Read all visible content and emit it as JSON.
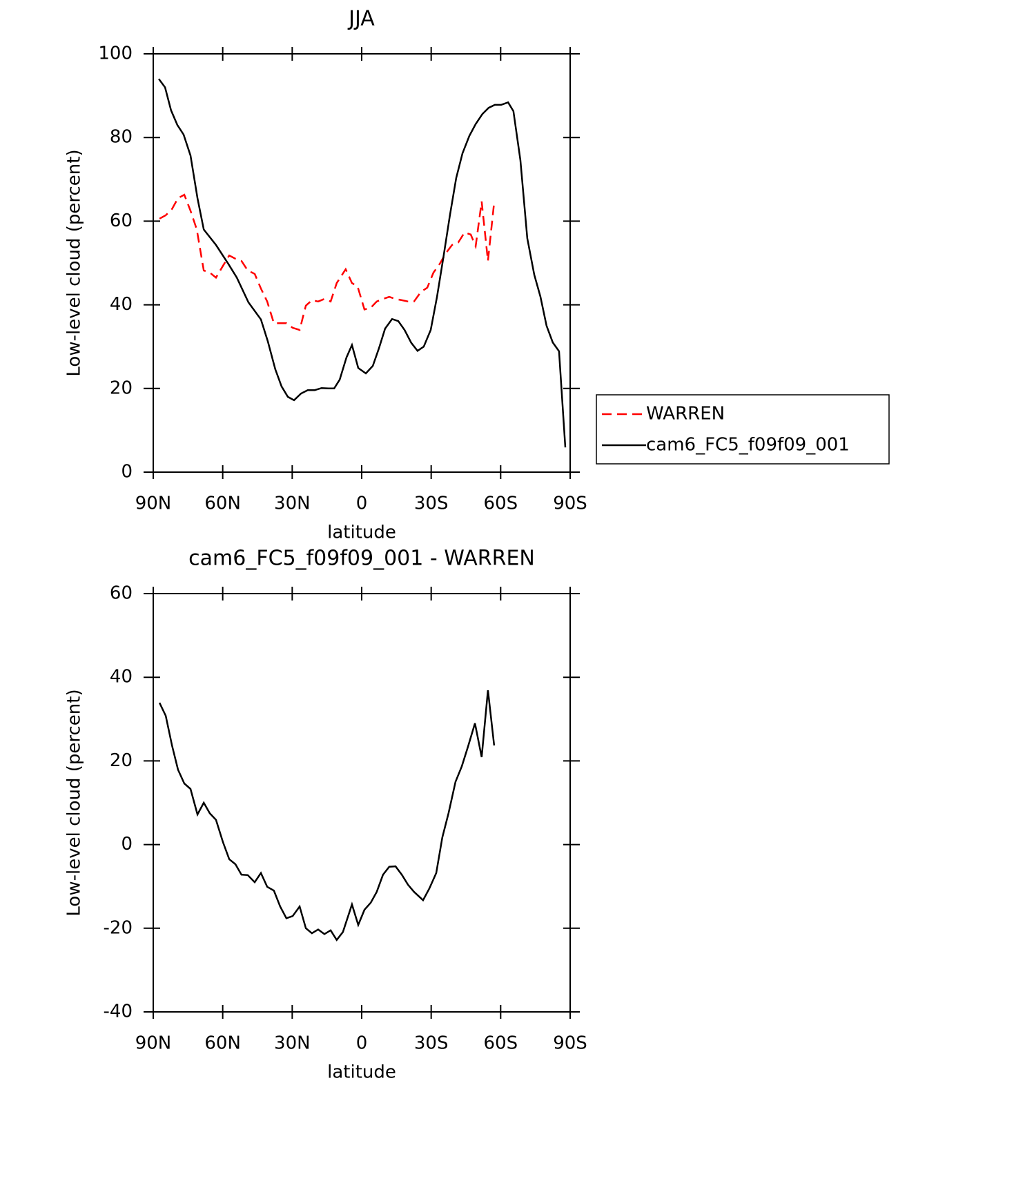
{
  "chart_data": [
    {
      "type": "line",
      "title": "JJA",
      "xlabel": "latitude",
      "ylabel": "Low-level cloud (percent)",
      "xlim": [
        90,
        -90
      ],
      "xticks": [
        {
          "value": 90,
          "label": "90N"
        },
        {
          "value": 60,
          "label": "60N"
        },
        {
          "value": 30,
          "label": "30N"
        },
        0,
        {
          "value": -30,
          "label": "30S"
        },
        {
          "value": -60,
          "label": "60S"
        },
        {
          "value": -90,
          "label": "90S"
        }
      ],
      "ylim": [
        0,
        100
      ],
      "yticks": [
        0,
        20,
        40,
        60,
        80,
        100
      ],
      "legend": "right",
      "series": [
        {
          "name": "WARREN",
          "color": "#ff0000",
          "linestyle": "dashed",
          "x": [
            87.3,
            84.6,
            81.9,
            79.3,
            76.6,
            73.9,
            71.2,
            68.2,
            65.6,
            62.9,
            59.9,
            57.2,
            54.5,
            51.9,
            49.2,
            46.2,
            43.5,
            40.8,
            37.9,
            35.2,
            32.5,
            29.8,
            26.8,
            24.1,
            21.5,
            18.8,
            16.1,
            13.4,
            10.8,
            6.9,
            4.2,
            1.8,
            -1.2,
            -3.9,
            -6.5,
            -9.2,
            -11.9,
            -14.6,
            -17.3,
            -20,
            -22.6,
            -25.6,
            -28.3,
            -31,
            -33.7,
            -36.3,
            -39,
            -41.7,
            -44.4,
            -47.1,
            -49.2,
            -51.8,
            -54.5,
            -57.2
          ],
          "values": [
            60.6,
            61.4,
            62.9,
            65.5,
            66.3,
            62.5,
            58,
            48.2,
            47.7,
            46.5,
            49.3,
            51.8,
            51,
            50.5,
            48.2,
            47.4,
            43.9,
            40.8,
            35.6,
            35.6,
            35.6,
            34.5,
            34,
            39.8,
            41.1,
            40.8,
            41.4,
            40.8,
            45.2,
            48.5,
            45.2,
            44.4,
            38.9,
            39.3,
            40.8,
            41.4,
            41.9,
            41.4,
            41.1,
            40.8,
            40.8,
            43.1,
            44.1,
            47.7,
            49.8,
            52.3,
            54.3,
            54.9,
            57.3,
            56.8,
            54,
            64.7,
            50.5,
            64.5
          ]
        },
        {
          "name": "cam6_FC5_f09f09_001",
          "color": "#000000",
          "linestyle": "solid",
          "x": [
            87.6,
            84.9,
            82.3,
            79.6,
            76.9,
            73.9,
            70.9,
            68.2,
            62.9,
            57.5,
            53.9,
            48.9,
            43.5,
            40.5,
            37.3,
            34.6,
            31.9,
            29.2,
            26.2,
            23.3,
            20.3,
            17.3,
            14.3,
            11.9,
            9.5,
            6.6,
            4.2,
            1.5,
            -1.8,
            -4.8,
            -7.4,
            -10.1,
            -13.1,
            -15.8,
            -18.5,
            -21.4,
            -24.1,
            -26.8,
            -29.8,
            -32.5,
            -35.4,
            -38.1,
            -40.8,
            -43.5,
            -46.5,
            -49.2,
            -52.1,
            -54.8,
            -57.5,
            -60.2,
            -63.2,
            -65.5,
            -68.5,
            -71.5,
            -74.5,
            -77.2,
            -79.8,
            -82.5,
            -85.2,
            -87.9
          ],
          "values": [
            94,
            92,
            86.5,
            83,
            80.7,
            75.7,
            65.5,
            58,
            54.3,
            49.7,
            46.5,
            40.6,
            36.5,
            31.2,
            24.6,
            20.5,
            18,
            17.2,
            18.8,
            19.6,
            19.6,
            20.1,
            20,
            20,
            22.1,
            27.4,
            30.4,
            24.9,
            23.6,
            25.4,
            29.5,
            34.3,
            36.6,
            36.1,
            34,
            30.9,
            29,
            30,
            34,
            41.9,
            51.8,
            61.4,
            70.3,
            76.2,
            80.4,
            83.2,
            85.6,
            87.1,
            87.8,
            87.8,
            88.4,
            86.3,
            74.6,
            55.9,
            47.2,
            41.9,
            35,
            31,
            28.9,
            5.9
          ]
        }
      ]
    },
    {
      "type": "line",
      "title": "cam6_FC5_f09f09_001 - WARREN",
      "xlabel": "latitude",
      "ylabel": "Low-level cloud (percent)",
      "xlim": [
        90,
        -90
      ],
      "xticks": [
        {
          "value": 90,
          "label": "90N"
        },
        {
          "value": 60,
          "label": "60N"
        },
        {
          "value": 30,
          "label": "30N"
        },
        0,
        {
          "value": -30,
          "label": "30S"
        },
        {
          "value": -60,
          "label": "60S"
        },
        {
          "value": -90,
          "label": "90S"
        }
      ],
      "ylim": [
        -40,
        60
      ],
      "yticks": [
        -40,
        -20,
        0,
        20,
        40,
        60
      ],
      "series": [
        {
          "color": "#000000",
          "linestyle": "solid",
          "x": [
            87.3,
            84.6,
            81.9,
            79.3,
            76.6,
            73.9,
            70.9,
            68.2,
            65.6,
            62.9,
            59.9,
            57.2,
            54.5,
            51.9,
            49.2,
            46.2,
            43.5,
            40.8,
            37.9,
            35.2,
            32.5,
            29.8,
            26.8,
            24.1,
            21.5,
            18.8,
            16.1,
            13.4,
            10.8,
            8.1,
            4.2,
            1.5,
            -1.2,
            -3.9,
            -6.5,
            -9.2,
            -11.9,
            -14.6,
            -17.3,
            -20,
            -22.6,
            -26.5,
            -29.2,
            -32.2,
            -34.8,
            -37.5,
            -40.5,
            -43.2,
            -45.9,
            -48.9,
            -51.8,
            -54.5,
            -57.2
          ],
          "values": [
            33.9,
            30.8,
            23.7,
            17.9,
            14.6,
            13.3,
            7.2,
            10,
            7.5,
            5.9,
            0.6,
            -3.5,
            -4.7,
            -7.2,
            -7.3,
            -9,
            -6.8,
            -10.1,
            -11,
            -14.8,
            -17.6,
            -17.1,
            -14.8,
            -20,
            -21.2,
            -20.3,
            -21.4,
            -20.5,
            -22.8,
            -20.9,
            -14.3,
            -19.2,
            -15.6,
            -13.9,
            -11.3,
            -7.2,
            -5.3,
            -5.2,
            -7.2,
            -9.6,
            -11.3,
            -13.3,
            -10.5,
            -6.8,
            1.7,
            7.5,
            15,
            18.7,
            23.4,
            29,
            20.9,
            36.9,
            23.7
          ]
        }
      ]
    }
  ]
}
